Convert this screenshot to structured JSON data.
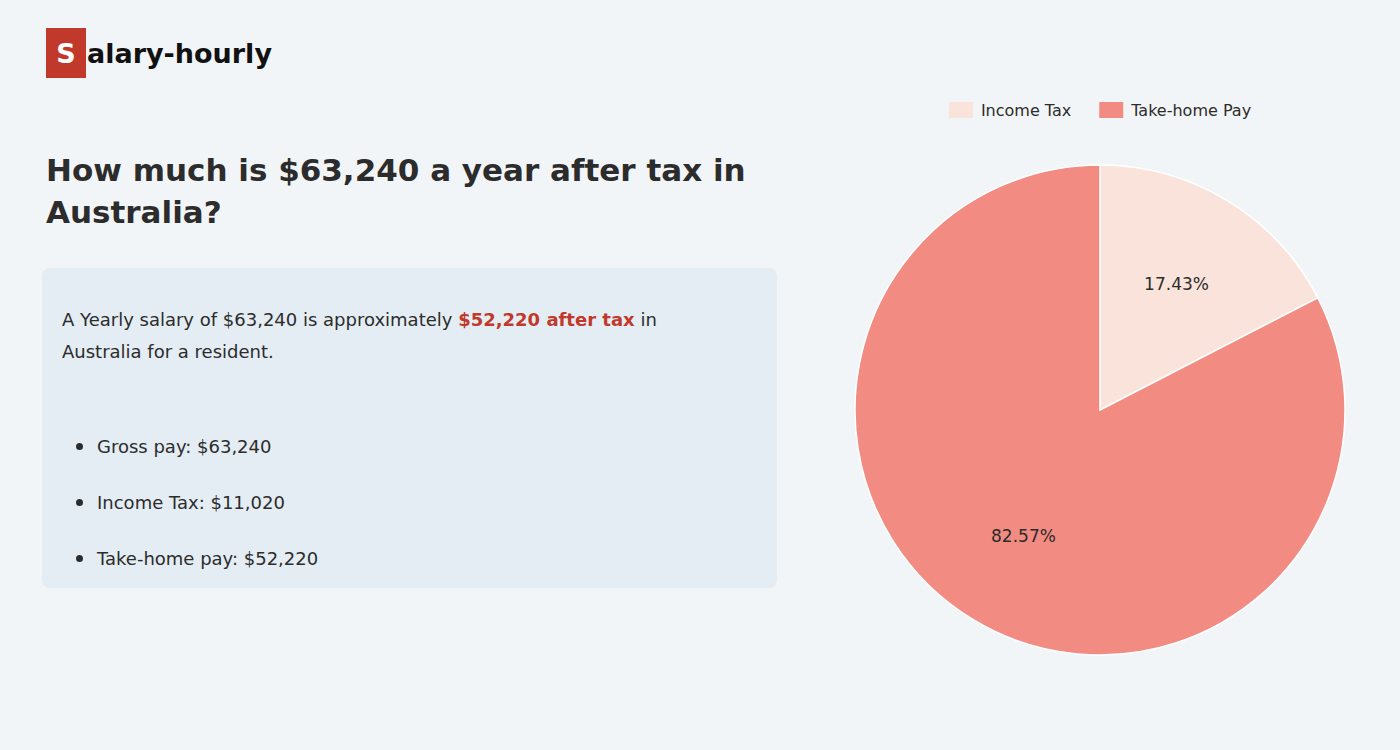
{
  "chart_data": {
    "type": "pie",
    "title": "How much is $63,240 a year after tax in\nAustralia?",
    "annotations": [
      "S",
      "alary-hourly",
      "A Yearly salary of $63,240 is approximately ",
      "$52,220 after tax",
      " in",
      "Australia for a resident.",
      "Gross pay: $63,240",
      "Income Tax: $11,020",
      "Take-home pay: $52,220"
    ],
    "categories": [
      "Income Tax",
      "Take-home Pay"
    ],
    "values": [
      17.43,
      82.57
    ],
    "value_labels": [
      "17.43%",
      "82.57%"
    ],
    "colors": [
      "#fae3da",
      "#f28b82"
    ],
    "data_labels": true,
    "legend": "top"
  }
}
